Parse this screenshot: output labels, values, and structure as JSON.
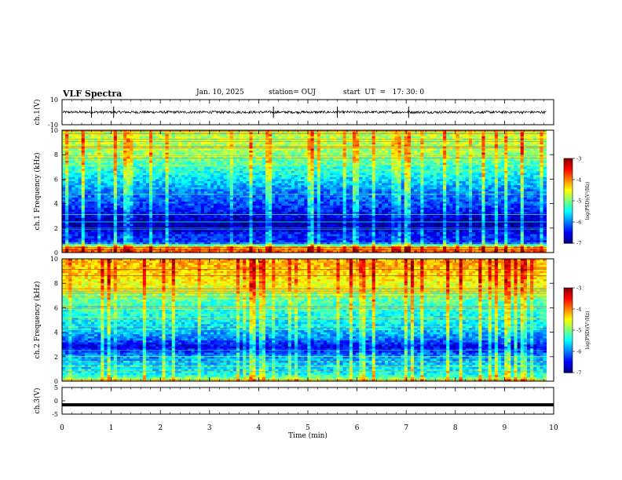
{
  "header": {
    "title": "VLF Spectra",
    "date": "Jan. 10, 2025",
    "station": "station= OUJ",
    "start": "start  UT  =   17: 30: 0"
  },
  "chart_data": [
    {
      "type": "line",
      "panel": "waveform-ch1",
      "ylabel": "ch.1(V)",
      "ylim": [
        -10,
        10
      ],
      "yticks": [
        "10",
        "-10"
      ],
      "xlim": [
        0,
        10
      ],
      "trace": {
        "mean": 0,
        "amplitude_approx": 1,
        "spikes_at_min": [
          0.6,
          1.05,
          4.3,
          5.6,
          7.05
        ]
      },
      "color": "#000000"
    },
    {
      "type": "heatmap",
      "panel": "spectrogram-ch1",
      "ylabel": "ch.1 Frequency (kHz)",
      "ylim": [
        0,
        10
      ],
      "yticks": [
        "0",
        "2",
        "4",
        "6",
        "8",
        "10"
      ],
      "xlim": [
        0,
        9.85
      ],
      "colorbar": {
        "label": "log(PSD)(V²/Hz)",
        "range": [
          -7,
          -3
        ],
        "ticks": [
          "-3",
          "-4",
          "-5",
          "-6",
          "-7"
        ]
      },
      "profile_khz_to_logpsd": [
        [
          0,
          -3.8
        ],
        [
          0.4,
          -4.1
        ],
        [
          0.8,
          -6.3
        ],
        [
          1.5,
          -6.4
        ],
        [
          2.0,
          -6.8
        ],
        [
          2.5,
          -6.9
        ],
        [
          3.0,
          -6.6
        ],
        [
          4.0,
          -6.2
        ],
        [
          5.0,
          -6.0
        ],
        [
          6.0,
          -5.6
        ],
        [
          7.0,
          -5.3
        ],
        [
          8.0,
          -4.9
        ],
        [
          9.0,
          -4.8
        ],
        [
          10.0,
          -4.8
        ]
      ]
    },
    {
      "type": "heatmap",
      "panel": "spectrogram-ch2",
      "ylabel": "ch.2 Frequency (kHz)",
      "ylim": [
        0,
        10
      ],
      "yticks": [
        "0",
        "2",
        "4",
        "6",
        "8",
        "10"
      ],
      "xlim": [
        0,
        9.85
      ],
      "colorbar": {
        "label": "log(PSD)(V²/Hz)",
        "range": [
          -7,
          -3
        ],
        "ticks": [
          "-3",
          "-4",
          "-5",
          "-6",
          "-7"
        ]
      },
      "profile_khz_to_logpsd": [
        [
          0,
          -4.6
        ],
        [
          0.5,
          -5.4
        ],
        [
          1.0,
          -5.6
        ],
        [
          2.0,
          -5.9
        ],
        [
          2.8,
          -6.6
        ],
        [
          3.5,
          -6.0
        ],
        [
          4.5,
          -5.6
        ],
        [
          5.5,
          -5.4
        ],
        [
          6.5,
          -5.2
        ],
        [
          7.5,
          -4.7
        ],
        [
          8.5,
          -4.4
        ],
        [
          9.5,
          -4.2
        ],
        [
          10.0,
          -4.2
        ]
      ]
    },
    {
      "type": "line",
      "panel": "waveform-ch3",
      "ylabel": "ch.3(V)",
      "ylim": [
        -5,
        5
      ],
      "yticks": [
        "5",
        "0",
        "-5"
      ],
      "xlabel": "Time  (min)",
      "xlim": [
        0,
        10
      ],
      "xticks": [
        "0",
        "1",
        "2",
        "3",
        "4",
        "5",
        "6",
        "7",
        "8",
        "9",
        "10"
      ],
      "trace": {
        "constant_value": -1.5
      },
      "color": "#000000"
    }
  ]
}
